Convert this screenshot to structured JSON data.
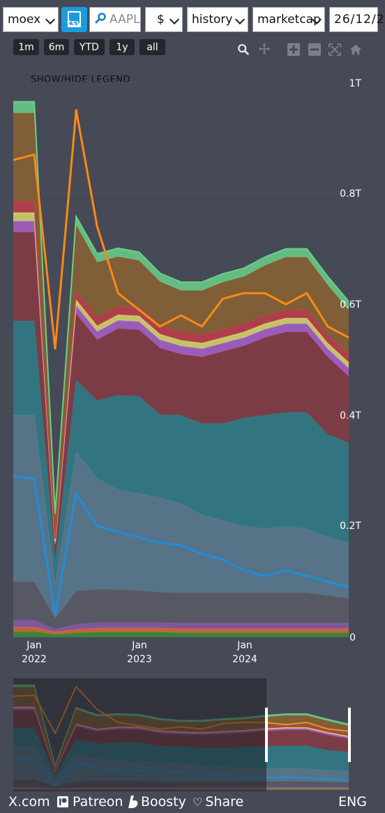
{
  "toolbar": {
    "exchange": "moex",
    "tsv_label": "tsv",
    "ticker_placeholder": "AAPL",
    "currency": "$",
    "mode": "history",
    "metric": "marketcap",
    "date_value": "26/12/2"
  },
  "ranges": [
    "1m",
    "6m",
    "YTD",
    "1y",
    "all"
  ],
  "legend_toggle": "SHOW/HIDE LEGEND",
  "footer": {
    "xcom": "X.com",
    "patreon": "Patreon",
    "boosty": "Boosty",
    "share": "Share",
    "lang": "ENG"
  },
  "chart_data": {
    "type": "area",
    "stacked": true,
    "x_ticks": [
      [
        "Jan",
        "2022"
      ],
      [
        "Jan",
        "2023"
      ],
      [
        "Jan",
        "2024"
      ]
    ],
    "y_ticks": [
      "0",
      "0.2T",
      "0.4T",
      "0.6T",
      "0.8T",
      "1T"
    ],
    "ylim": [
      0,
      1000
    ],
    "unit": "billion USD",
    "x": [
      "2021-10",
      "2022-01",
      "2022-02",
      "2022-03",
      "2022-04",
      "2022-06",
      "2022-08",
      "2022-10",
      "2023-01",
      "2023-04",
      "2023-07",
      "2023-10",
      "2024-01",
      "2024-04",
      "2024-07",
      "2024-10",
      "2024-12"
    ],
    "series": [
      {
        "values": [
          10,
          10,
          5,
          8,
          9,
          9,
          9,
          9,
          8,
          8,
          8,
          8,
          8,
          8,
          8,
          8,
          8
        ],
        "color": "#3c8a3c"
      },
      {
        "values": [
          8,
          8,
          4,
          6,
          7,
          7,
          7,
          7,
          7,
          7,
          7,
          7,
          7,
          7,
          7,
          7,
          7
        ],
        "color": "#d8692e"
      },
      {
        "values": [
          12,
          12,
          5,
          9,
          10,
          10,
          10,
          10,
          10,
          10,
          10,
          10,
          10,
          10,
          10,
          10,
          10
        ],
        "color": "#8a5aa8"
      },
      {
        "values": [
          70,
          70,
          20,
          60,
          60,
          60,
          58,
          55,
          55,
          55,
          55,
          55,
          55,
          55,
          55,
          50,
          45
        ],
        "color": "#5c5b66"
      },
      {
        "values": [
          300,
          300,
          60,
          250,
          200,
          180,
          175,
          170,
          160,
          140,
          130,
          120,
          115,
          120,
          115,
          105,
          100
        ],
        "color": "#5a7a90"
      },
      {
        "values": [
          170,
          170,
          40,
          130,
          140,
          170,
          175,
          150,
          160,
          165,
          175,
          195,
          205,
          205,
          210,
          185,
          180
        ],
        "color": "#2f7d87"
      },
      {
        "values": [
          160,
          160,
          30,
          120,
          110,
          120,
          120,
          120,
          110,
          120,
          130,
          130,
          140,
          145,
          145,
          140,
          120
        ],
        "color": "#863943"
      },
      {
        "values": [
          20,
          20,
          5,
          15,
          15,
          15,
          15,
          15,
          15,
          15,
          15,
          15,
          15,
          15,
          15,
          15,
          15
        ],
        "color": "#a860c8"
      },
      {
        "values": [
          15,
          15,
          4,
          10,
          10,
          10,
          10,
          10,
          10,
          10,
          10,
          10,
          10,
          10,
          10,
          10,
          10
        ],
        "color": "#d8d86a"
      },
      {
        "values": [
          20,
          20,
          5,
          15,
          15,
          15,
          15,
          15,
          15,
          15,
          15,
          15,
          15,
          15,
          15,
          15,
          15
        ],
        "color": "#c03d4a"
      },
      {
        "values": [
          160,
          160,
          40,
          120,
          100,
          90,
          85,
          80,
          75,
          80,
          85,
          85,
          90,
          95,
          95,
          90,
          80
        ],
        "color": "#8a6232"
      },
      {
        "values": [
          20,
          20,
          5,
          15,
          15,
          15,
          15,
          15,
          15,
          15,
          15,
          15,
          15,
          15,
          15,
          15,
          15
        ],
        "color": "#6ad08a"
      }
    ],
    "overlay_lines": [
      {
        "values": [
          290,
          285,
          40,
          260,
          200,
          190,
          180,
          170,
          165,
          150,
          140,
          120,
          110,
          120,
          110,
          100,
          90
        ],
        "color": "#1f8fd6"
      },
      {
        "values": [
          860,
          870,
          520,
          950,
          740,
          620,
          590,
          560,
          580,
          560,
          610,
          620,
          620,
          600,
          620,
          560,
          540
        ],
        "color": "#ff8a14"
      }
    ]
  }
}
